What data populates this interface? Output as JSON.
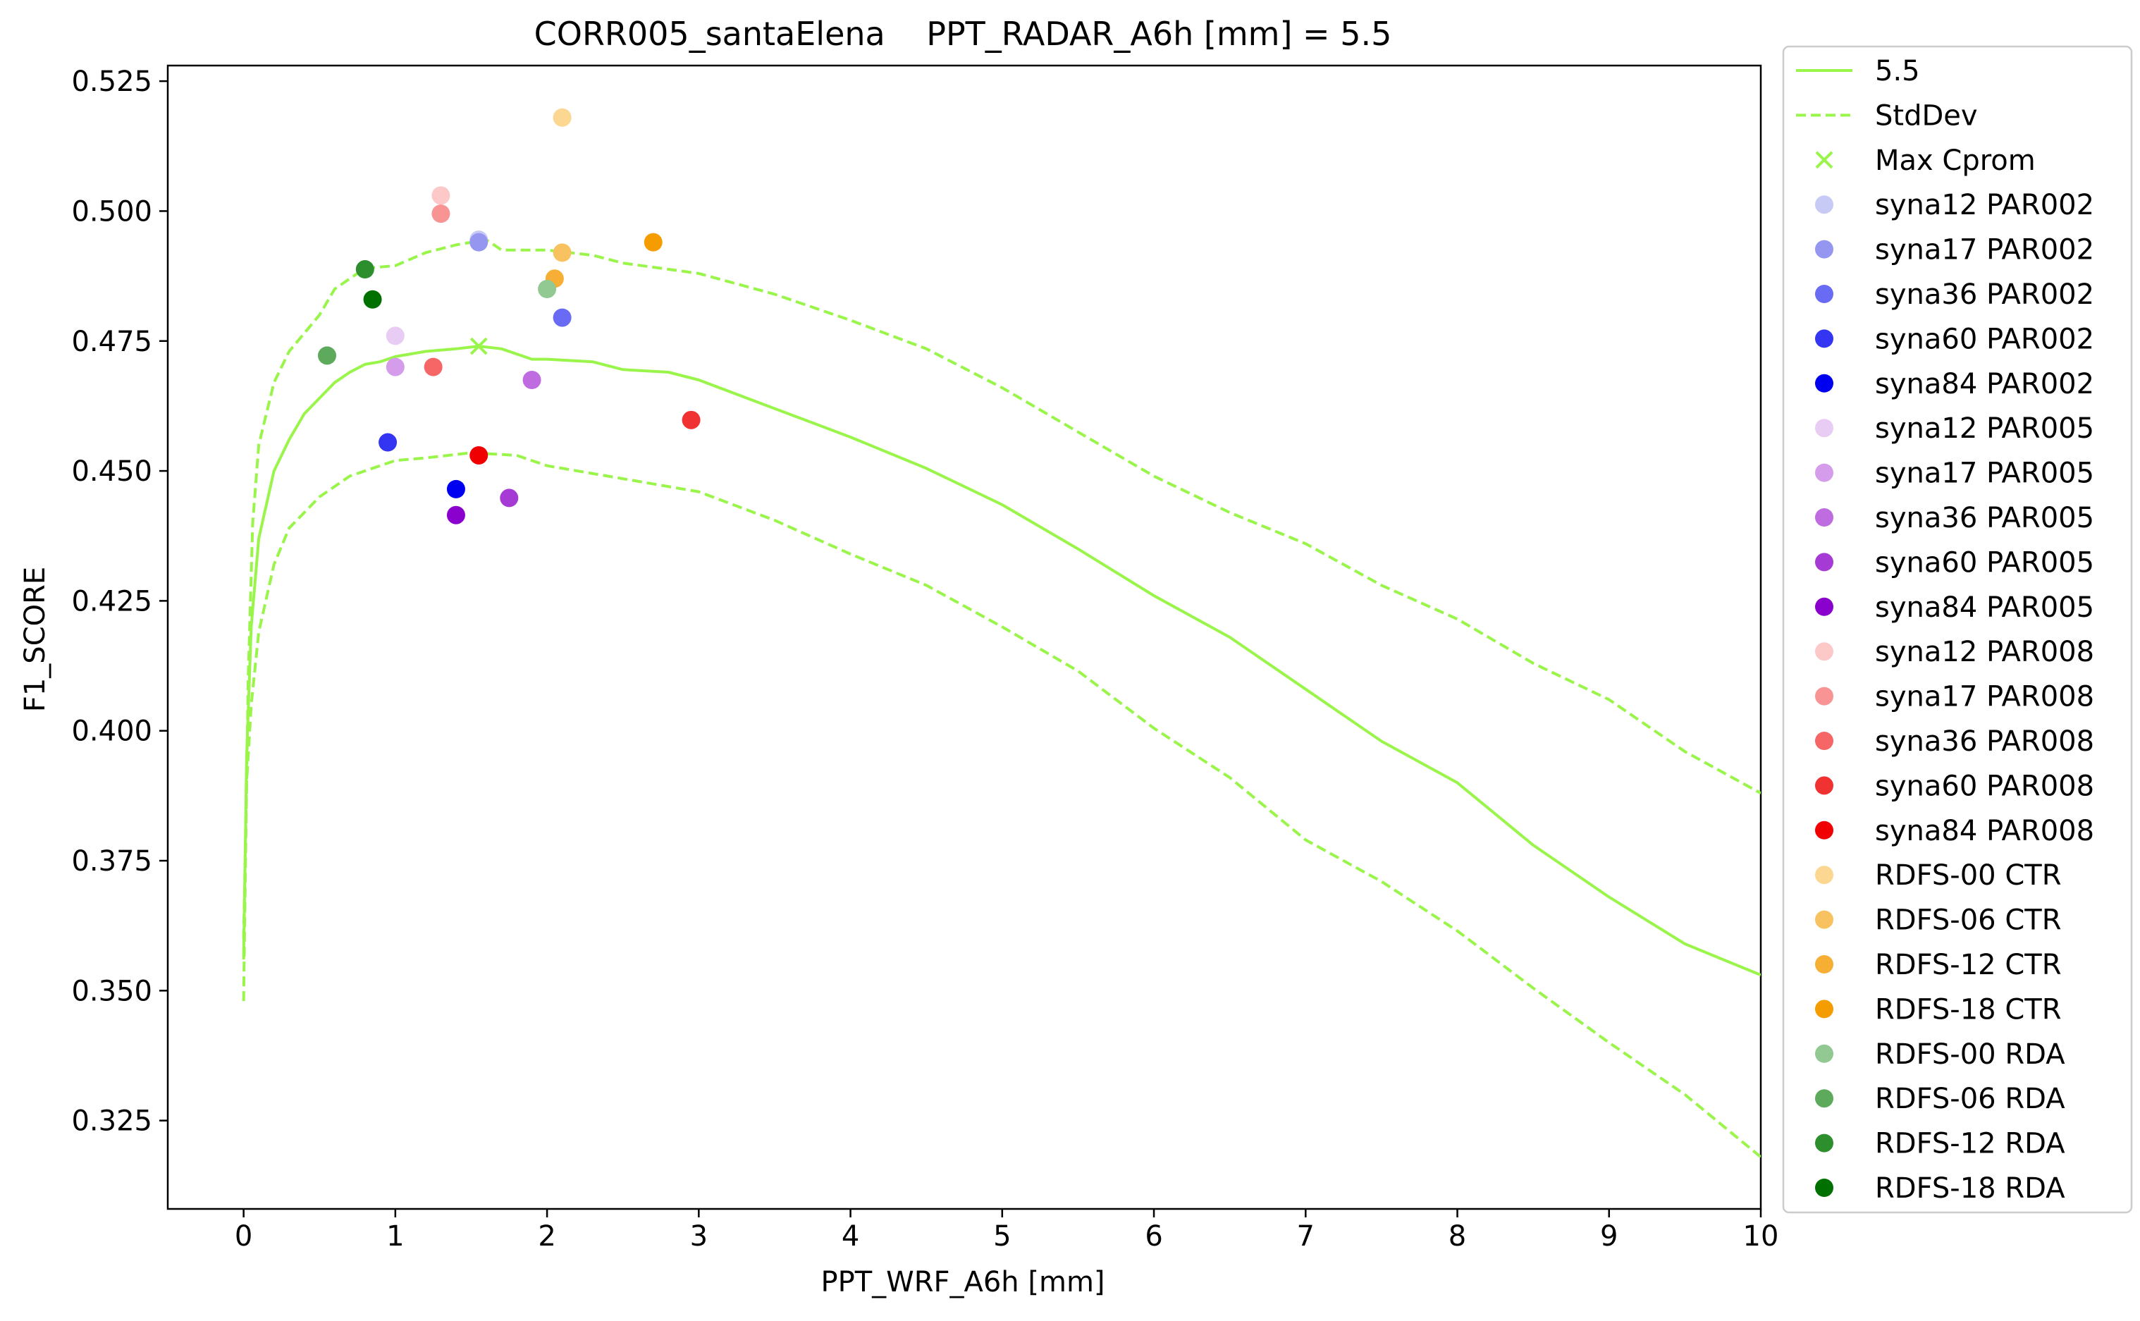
{
  "chart_data": {
    "type": "scatter",
    "title": "CORR005_santaElena    PPT_RADAR_A6h [mm] = 5.5",
    "xlabel": "PPT_WRF_A6h [mm]",
    "ylabel": "F1_SCORE",
    "xlim": [
      -0.5,
      10
    ],
    "ylim": [
      0.308,
      0.528
    ],
    "x_ticks": [
      0,
      1,
      2,
      3,
      4,
      5,
      6,
      7,
      8,
      9,
      10
    ],
    "y_ticks": [
      0.325,
      0.35,
      0.375,
      0.4,
      0.425,
      0.45,
      0.475,
      0.5,
      0.525
    ],
    "grid": false,
    "legend_position": "outside-right",
    "line_color": "#9AF54A",
    "line_series": [
      {
        "name": "5.5",
        "style": "solid",
        "points": [
          [
            0,
            0.356
          ],
          [
            0.02,
            0.395
          ],
          [
            0.05,
            0.42
          ],
          [
            0.1,
            0.437
          ],
          [
            0.2,
            0.45
          ],
          [
            0.3,
            0.456
          ],
          [
            0.4,
            0.461
          ],
          [
            0.5,
            0.464
          ],
          [
            0.6,
            0.467
          ],
          [
            0.7,
            0.469
          ],
          [
            0.8,
            0.4705
          ],
          [
            0.9,
            0.471
          ],
          [
            1.0,
            0.472
          ],
          [
            1.2,
            0.473
          ],
          [
            1.4,
            0.4735
          ],
          [
            1.55,
            0.474
          ],
          [
            1.7,
            0.4735
          ],
          [
            1.9,
            0.4715
          ],
          [
            2.0,
            0.4715
          ],
          [
            2.3,
            0.471
          ],
          [
            2.5,
            0.4695
          ],
          [
            2.8,
            0.469
          ],
          [
            3.0,
            0.4675
          ],
          [
            3.5,
            0.462
          ],
          [
            4.0,
            0.4565
          ],
          [
            4.5,
            0.4505
          ],
          [
            5.0,
            0.4435
          ],
          [
            5.5,
            0.435
          ],
          [
            6.0,
            0.426
          ],
          [
            6.5,
            0.418
          ],
          [
            7.0,
            0.408
          ],
          [
            7.5,
            0.398
          ],
          [
            8.0,
            0.39
          ],
          [
            8.5,
            0.378
          ],
          [
            9.0,
            0.368
          ],
          [
            9.5,
            0.359
          ],
          [
            10.0,
            0.353
          ]
        ]
      },
      {
        "name": "StdDev",
        "style": "dashed",
        "points": [
          [
            0,
            0.348
          ],
          [
            0.01,
            0.37
          ],
          [
            0.03,
            0.41
          ],
          [
            0.06,
            0.44
          ],
          [
            0.1,
            0.455
          ],
          [
            0.2,
            0.467
          ],
          [
            0.3,
            0.473
          ],
          [
            0.5,
            0.48
          ],
          [
            0.6,
            0.485
          ],
          [
            0.8,
            0.489
          ],
          [
            1.0,
            0.4895
          ],
          [
            1.2,
            0.492
          ],
          [
            1.4,
            0.4935
          ],
          [
            1.6,
            0.4945
          ],
          [
            1.7,
            0.4925
          ],
          [
            2.0,
            0.4925
          ],
          [
            2.3,
            0.4915
          ],
          [
            2.5,
            0.49
          ],
          [
            3.0,
            0.488
          ],
          [
            3.5,
            0.484
          ],
          [
            4.0,
            0.479
          ],
          [
            4.5,
            0.4735
          ],
          [
            5.0,
            0.466
          ],
          [
            5.5,
            0.4575
          ],
          [
            6.0,
            0.449
          ],
          [
            6.5,
            0.442
          ],
          [
            7.0,
            0.436
          ],
          [
            7.5,
            0.428
          ],
          [
            8.0,
            0.4215
          ],
          [
            8.5,
            0.413
          ],
          [
            9.0,
            0.406
          ],
          [
            9.5,
            0.396
          ],
          [
            10.0,
            0.388
          ]
        ]
      },
      {
        "name": "StdDev",
        "style": "dashed",
        "show_in_legend": false,
        "points": [
          [
            0,
            0.36
          ],
          [
            0.02,
            0.39
          ],
          [
            0.05,
            0.405
          ],
          [
            0.1,
            0.419
          ],
          [
            0.2,
            0.432
          ],
          [
            0.3,
            0.439
          ],
          [
            0.5,
            0.445
          ],
          [
            0.7,
            0.449
          ],
          [
            1.0,
            0.452
          ],
          [
            1.2,
            0.4525
          ],
          [
            1.5,
            0.4535
          ],
          [
            1.8,
            0.453
          ],
          [
            2.0,
            0.451
          ],
          [
            2.5,
            0.4485
          ],
          [
            3.0,
            0.446
          ],
          [
            3.5,
            0.4405
          ],
          [
            4.0,
            0.434
          ],
          [
            4.5,
            0.428
          ],
          [
            5.0,
            0.42
          ],
          [
            5.5,
            0.4115
          ],
          [
            6.0,
            0.4005
          ],
          [
            6.5,
            0.391
          ],
          [
            7.0,
            0.379
          ],
          [
            7.5,
            0.371
          ],
          [
            8.0,
            0.3615
          ],
          [
            8.5,
            0.3505
          ],
          [
            9.0,
            0.34
          ],
          [
            9.5,
            0.33
          ],
          [
            10.0,
            0.318
          ]
        ]
      }
    ],
    "max_cprom": {
      "name": "Max Cprom",
      "x": 1.55,
      "y": 0.474
    },
    "scatter_series": [
      {
        "name": "syna12 PAR002",
        "color": "#C8CAF6",
        "x": 1.55,
        "y": 0.4945
      },
      {
        "name": "syna17 PAR002",
        "color": "#9496F0",
        "x": 1.55,
        "y": 0.494
      },
      {
        "name": "syna36 PAR002",
        "color": "#6A6BF4",
        "x": 2.1,
        "y": 0.4795
      },
      {
        "name": "syna60 PAR002",
        "color": "#3335F2",
        "x": 0.95,
        "y": 0.4555
      },
      {
        "name": "syna84 PAR002",
        "color": "#0000F0",
        "x": 1.4,
        "y": 0.4465
      },
      {
        "name": "syna12 PAR005",
        "color": "#E8CCF4",
        "x": 1.0,
        "y": 0.476
      },
      {
        "name": "syna17 PAR005",
        "color": "#D49CEA",
        "x": 1.0,
        "y": 0.47
      },
      {
        "name": "syna36 PAR005",
        "color": "#BE6CE0",
        "x": 1.9,
        "y": 0.4675
      },
      {
        "name": "syna60 PAR005",
        "color": "#A63AD4",
        "x": 1.75,
        "y": 0.4448
      },
      {
        "name": "syna84 PAR005",
        "color": "#8A00CC",
        "x": 1.4,
        "y": 0.4415
      },
      {
        "name": "syna12 PAR008",
        "color": "#FCC8C8",
        "x": 1.3,
        "y": 0.503
      },
      {
        "name": "syna17 PAR008",
        "color": "#F89494",
        "x": 1.3,
        "y": 0.4995
      },
      {
        "name": "syna36 PAR008",
        "color": "#F66666",
        "x": 1.25,
        "y": 0.47
      },
      {
        "name": "syna60 PAR008",
        "color": "#F03232",
        "x": 2.95,
        "y": 0.4598
      },
      {
        "name": "syna84 PAR008",
        "color": "#F00000",
        "x": 1.55,
        "y": 0.453
      },
      {
        "name": "RDFS-00 CTR",
        "color": "#FBD791",
        "x": 2.1,
        "y": 0.518
      },
      {
        "name": "RDFS-06 CTR",
        "color": "#F8C260",
        "x": 2.1,
        "y": 0.492
      },
      {
        "name": "RDFS-12 CTR",
        "color": "#F6AE34",
        "x": 2.05,
        "y": 0.487
      },
      {
        "name": "RDFS-18 CTR",
        "color": "#F49C00",
        "x": 2.7,
        "y": 0.494
      },
      {
        "name": "RDFS-00 RDA",
        "color": "#92C992",
        "x": 2.0,
        "y": 0.485
      },
      {
        "name": "RDFS-06 RDA",
        "color": "#5DAA5D",
        "x": 0.55,
        "y": 0.4722
      },
      {
        "name": "RDFS-12 RDA",
        "color": "#2C8E2C",
        "x": 0.8,
        "y": 0.4888
      },
      {
        "name": "RDFS-18 RDA",
        "color": "#007000",
        "x": 0.85,
        "y": 0.483
      }
    ]
  }
}
